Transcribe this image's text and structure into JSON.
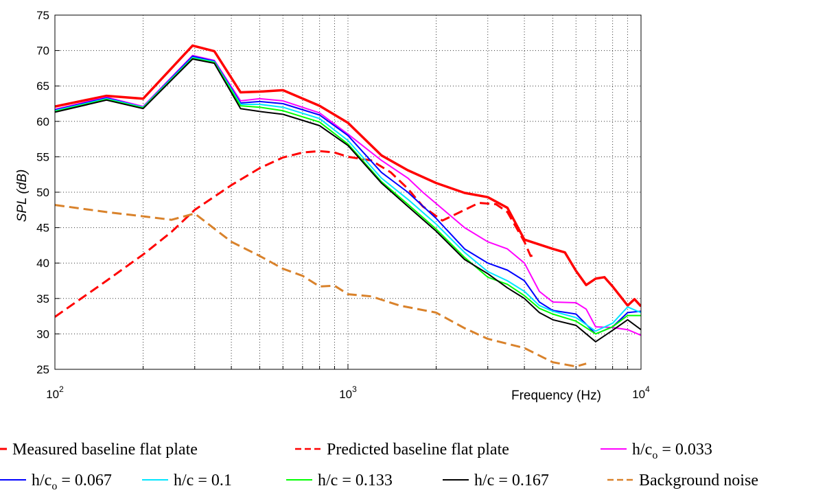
{
  "chart_data": {
    "type": "line",
    "xscale": "log",
    "xlim": [
      100,
      10000
    ],
    "ylim": [
      25,
      75
    ],
    "xlabel": "Frequency (Hz)",
    "ylabel": "SPL (dB)",
    "x_ticks": [
      {
        "value": 100,
        "base": "10",
        "exp": "2"
      },
      {
        "value": 1000,
        "base": "10",
        "exp": "3"
      },
      {
        "value": 10000,
        "base": "10",
        "exp": "4"
      }
    ],
    "y_ticks": [
      25,
      30,
      35,
      40,
      45,
      50,
      55,
      60,
      65,
      70,
      75
    ],
    "grid": true,
    "legend_position": "below plot",
    "series": [
      {
        "key": "measured",
        "name": "Measured baseline flat plate",
        "color": "#ff0000",
        "dash": "solid",
        "width": 3.5,
        "points": [
          [
            100,
            62.1
          ],
          [
            150,
            63.6
          ],
          [
            200,
            63.2
          ],
          [
            295,
            70.7
          ],
          [
            350,
            69.9
          ],
          [
            430,
            64.1
          ],
          [
            500,
            64.2
          ],
          [
            600,
            64.4
          ],
          [
            800,
            62.2
          ],
          [
            1000,
            59.8
          ],
          [
            1300,
            55.2
          ],
          [
            1600,
            53.1
          ],
          [
            2000,
            51.3
          ],
          [
            2500,
            49.9
          ],
          [
            3000,
            49.3
          ],
          [
            3500,
            47.8
          ],
          [
            4000,
            43.3
          ],
          [
            5000,
            42.0
          ],
          [
            5500,
            41.5
          ],
          [
            6000,
            38.9
          ],
          [
            6500,
            36.9
          ],
          [
            7000,
            37.8
          ],
          [
            7500,
            38.0
          ],
          [
            8000,
            36.7
          ],
          [
            9000,
            34.0
          ],
          [
            9500,
            34.9
          ],
          [
            10000,
            33.9
          ]
        ]
      },
      {
        "key": "predicted",
        "name": "Predicted baseline flat plate",
        "color": "#ff0000",
        "dash": "dash",
        "width": 3,
        "points": [
          [
            100,
            32.4
          ],
          [
            150,
            37.5
          ],
          [
            200,
            41.2
          ],
          [
            250,
            44.4
          ],
          [
            300,
            47.5
          ],
          [
            400,
            51.0
          ],
          [
            500,
            53.4
          ],
          [
            600,
            54.9
          ],
          [
            700,
            55.6
          ],
          [
            800,
            55.8
          ],
          [
            900,
            55.6
          ],
          [
            1000,
            55.0
          ],
          [
            1200,
            54.5
          ],
          [
            1400,
            52.8
          ],
          [
            1600,
            50.5
          ],
          [
            1800,
            48.0
          ],
          [
            2100,
            46.0
          ],
          [
            2500,
            47.5
          ],
          [
            2800,
            48.5
          ],
          [
            3200,
            48.3
          ],
          [
            3500,
            47.2
          ],
          [
            4000,
            43.0
          ],
          [
            4200,
            41.0
          ],
          [
            4400,
            41.2
          ]
        ]
      },
      {
        "key": "h033",
        "name": "h/co = 0.033",
        "color": "#ff00ff",
        "dash": "solid",
        "width": 2,
        "points": [
          [
            100,
            61.7
          ],
          [
            150,
            63.4
          ],
          [
            200,
            62.1
          ],
          [
            295,
            69.3
          ],
          [
            350,
            68.6
          ],
          [
            430,
            62.9
          ],
          [
            500,
            63.2
          ],
          [
            600,
            62.9
          ],
          [
            800,
            61.2
          ],
          [
            1000,
            58.2
          ],
          [
            1300,
            54.5
          ],
          [
            1600,
            52.0
          ],
          [
            1800,
            50.0
          ],
          [
            2000,
            48.4
          ],
          [
            2500,
            45.0
          ],
          [
            3000,
            43.0
          ],
          [
            3500,
            42.0
          ],
          [
            4000,
            40.0
          ],
          [
            4500,
            36.0
          ],
          [
            5000,
            34.5
          ],
          [
            6000,
            34.4
          ],
          [
            6500,
            33.5
          ],
          [
            7000,
            31.0
          ],
          [
            8000,
            30.9
          ],
          [
            9000,
            30.6
          ],
          [
            10000,
            29.8
          ]
        ]
      },
      {
        "key": "h067",
        "name": "h/co = 0.067",
        "color": "#0000ff",
        "dash": "solid",
        "width": 2,
        "points": [
          [
            100,
            61.6
          ],
          [
            150,
            63.3
          ],
          [
            200,
            62.0
          ],
          [
            295,
            69.2
          ],
          [
            350,
            68.5
          ],
          [
            430,
            62.6
          ],
          [
            500,
            62.8
          ],
          [
            600,
            62.5
          ],
          [
            800,
            60.9
          ],
          [
            1000,
            58.0
          ],
          [
            1300,
            52.8
          ],
          [
            1600,
            50.0
          ],
          [
            2000,
            46.3
          ],
          [
            2500,
            42.0
          ],
          [
            3000,
            40.0
          ],
          [
            3500,
            39.0
          ],
          [
            4000,
            37.5
          ],
          [
            4500,
            34.5
          ],
          [
            5000,
            33.3
          ],
          [
            6000,
            32.8
          ],
          [
            7000,
            30.0
          ],
          [
            8000,
            31.0
          ],
          [
            9000,
            33.0
          ],
          [
            10000,
            33.2
          ]
        ]
      },
      {
        "key": "h1",
        "name": "h/c = 0.1",
        "color": "#00e5ff",
        "dash": "solid",
        "width": 2,
        "points": [
          [
            100,
            61.5
          ],
          [
            150,
            63.2
          ],
          [
            200,
            62.0
          ],
          [
            295,
            69.0
          ],
          [
            350,
            68.4
          ],
          [
            430,
            62.4
          ],
          [
            500,
            62.4
          ],
          [
            600,
            62.0
          ],
          [
            800,
            60.4
          ],
          [
            1000,
            57.3
          ],
          [
            1300,
            52.0
          ],
          [
            1600,
            49.0
          ],
          [
            2000,
            45.5
          ],
          [
            2500,
            41.5
          ],
          [
            3000,
            38.8
          ],
          [
            3500,
            37.5
          ],
          [
            4000,
            36.0
          ],
          [
            4500,
            34.0
          ],
          [
            5000,
            33.2
          ],
          [
            6000,
            32.3
          ],
          [
            7000,
            30.4
          ],
          [
            8000,
            31.5
          ],
          [
            9000,
            33.8
          ],
          [
            10000,
            33.0
          ]
        ]
      },
      {
        "key": "h133",
        "name": "h/c = 0.133",
        "color": "#00ff00",
        "dash": "solid",
        "width": 2,
        "points": [
          [
            100,
            61.4
          ],
          [
            150,
            63.1
          ],
          [
            200,
            61.9
          ],
          [
            295,
            68.9
          ],
          [
            350,
            68.3
          ],
          [
            430,
            62.2
          ],
          [
            500,
            62.0
          ],
          [
            600,
            61.5
          ],
          [
            800,
            59.9
          ],
          [
            1000,
            56.8
          ],
          [
            1300,
            51.5
          ],
          [
            1600,
            48.3
          ],
          [
            2000,
            44.8
          ],
          [
            2500,
            40.8
          ],
          [
            3000,
            38.0
          ],
          [
            3500,
            37.0
          ],
          [
            4000,
            35.4
          ],
          [
            4500,
            33.6
          ],
          [
            5000,
            32.8
          ],
          [
            6000,
            31.8
          ],
          [
            7000,
            30.0
          ],
          [
            8000,
            31.0
          ],
          [
            9000,
            32.6
          ],
          [
            10000,
            32.6
          ]
        ]
      },
      {
        "key": "h167",
        "name": "h/c = 0.167",
        "color": "#000000",
        "dash": "solid",
        "width": 2,
        "points": [
          [
            100,
            61.3
          ],
          [
            150,
            63.0
          ],
          [
            200,
            61.8
          ],
          [
            295,
            68.8
          ],
          [
            350,
            68.2
          ],
          [
            430,
            61.8
          ],
          [
            500,
            61.4
          ],
          [
            600,
            61.0
          ],
          [
            800,
            59.4
          ],
          [
            1000,
            56.6
          ],
          [
            1300,
            51.3
          ],
          [
            1600,
            48.0
          ],
          [
            2000,
            44.5
          ],
          [
            2500,
            40.5
          ],
          [
            3000,
            38.5
          ],
          [
            3500,
            36.5
          ],
          [
            4000,
            35.0
          ],
          [
            4500,
            33.0
          ],
          [
            5000,
            32.0
          ],
          [
            6000,
            31.2
          ],
          [
            7000,
            28.9
          ],
          [
            8000,
            30.5
          ],
          [
            9000,
            32.0
          ],
          [
            10000,
            30.6
          ]
        ]
      },
      {
        "key": "noise",
        "name": "Background noise",
        "color": "#d9822b",
        "dash": "dash",
        "width": 3,
        "points": [
          [
            100,
            48.2
          ],
          [
            150,
            47.2
          ],
          [
            200,
            46.6
          ],
          [
            250,
            46.1
          ],
          [
            300,
            47.0
          ],
          [
            400,
            43.0
          ],
          [
            500,
            41.0
          ],
          [
            600,
            39.2
          ],
          [
            700,
            38.2
          ],
          [
            800,
            36.7
          ],
          [
            900,
            36.8
          ],
          [
            1000,
            35.6
          ],
          [
            1200,
            35.3
          ],
          [
            1500,
            34.0
          ],
          [
            2000,
            33.0
          ],
          [
            2500,
            30.8
          ],
          [
            3000,
            29.3
          ],
          [
            4000,
            28.0
          ],
          [
            5000,
            26.0
          ],
          [
            6000,
            25.4
          ],
          [
            6500,
            25.8
          ]
        ]
      }
    ],
    "legend_rows": [
      [
        {
          "key": "measured",
          "label": "Measured baseline flat plate",
          "sub": "",
          "rest": ""
        },
        {
          "key": "predicted",
          "label": "Predicted baseline flat plate",
          "sub": "",
          "rest": ""
        },
        {
          "key": "h033",
          "label": "h/c",
          "sub": "o",
          "rest": " = 0.033"
        }
      ],
      [
        {
          "key": "h067",
          "label": "h/c",
          "sub": "o",
          "rest": " = 0.067"
        },
        {
          "key": "h1",
          "label": "h/c = 0.1",
          "sub": "",
          "rest": ""
        },
        {
          "key": "h133",
          "label": "h/c = 0.133",
          "sub": "",
          "rest": ""
        },
        {
          "key": "h167",
          "label": "h/c = 0.167",
          "sub": "",
          "rest": ""
        },
        {
          "key": "noise",
          "label": "Background noise",
          "sub": "",
          "rest": ""
        }
      ]
    ]
  }
}
